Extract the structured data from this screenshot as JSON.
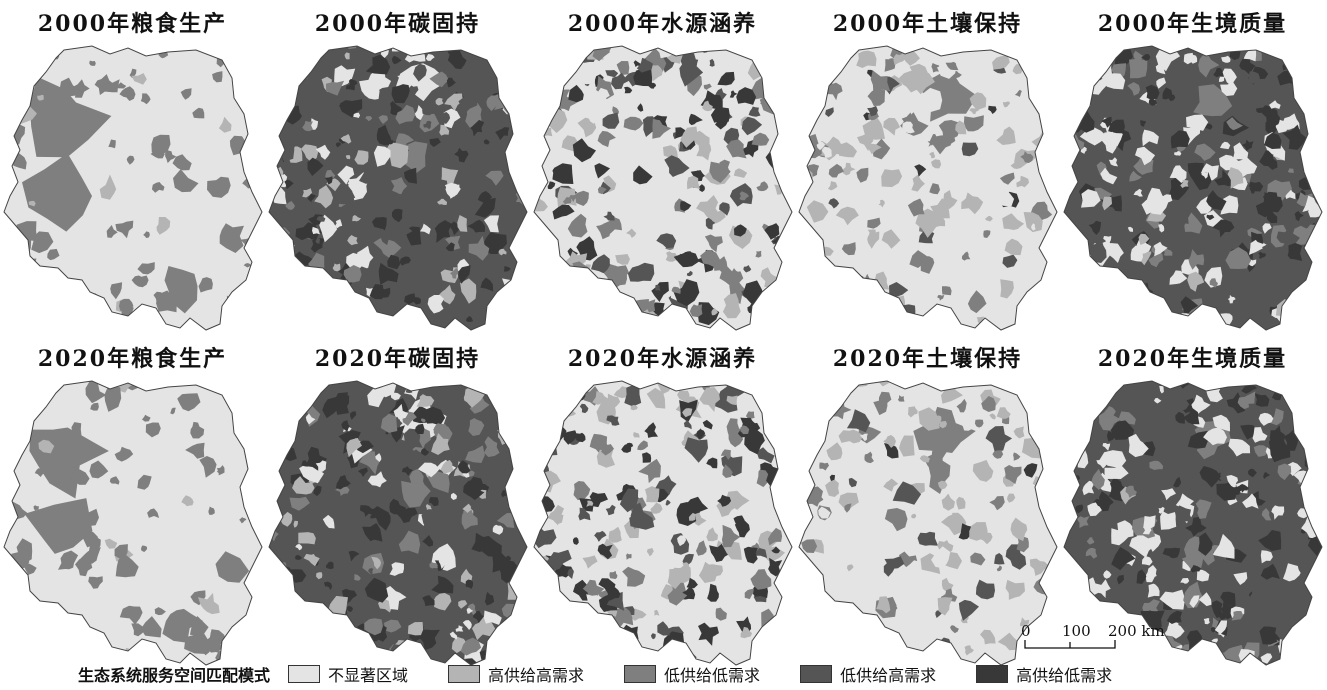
{
  "panels": [
    {
      "title": "2000年粮食生产",
      "year": "2000",
      "service": "粮食生产",
      "pattern": "food"
    },
    {
      "title": "2000年碳固持",
      "year": "2000",
      "service": "碳固持",
      "pattern": "carbon"
    },
    {
      "title": "2000年水源涵养",
      "year": "2000",
      "service": "水源涵养",
      "pattern": "water"
    },
    {
      "title": "2000年土壤保持",
      "year": "2000",
      "service": "土壤保持",
      "pattern": "soil"
    },
    {
      "title": "2000年生境质量",
      "year": "2000",
      "service": "生境质量",
      "pattern": "habitat"
    },
    {
      "title": "2020年粮食生产",
      "year": "2020",
      "service": "粮食生产",
      "pattern": "food"
    },
    {
      "title": "2020年碳固持",
      "year": "2020",
      "service": "碳固持",
      "pattern": "carbon"
    },
    {
      "title": "2020年水源涵养",
      "year": "2020",
      "service": "水源涵养",
      "pattern": "water"
    },
    {
      "title": "2020年土壤保持",
      "year": "2020",
      "service": "土壤保持",
      "pattern": "soil"
    },
    {
      "title": "2020年生境质量",
      "year": "2020",
      "service": "生境质量",
      "pattern": "habitat"
    }
  ],
  "legend": {
    "title": "生态系统服务空间匹配模式",
    "items": [
      {
        "label": "不显著区域",
        "color": "#e4e4e4"
      },
      {
        "label": "高供给高需求",
        "color": "#b4b4b4"
      },
      {
        "label": "低供给低需求",
        "color": "#7f7f7f"
      },
      {
        "label": "低供给高需求",
        "color": "#555555"
      },
      {
        "label": "高供给低需求",
        "color": "#383838"
      }
    ]
  },
  "scalebar": {
    "ticks": [
      "0",
      "100",
      "200 km"
    ]
  }
}
